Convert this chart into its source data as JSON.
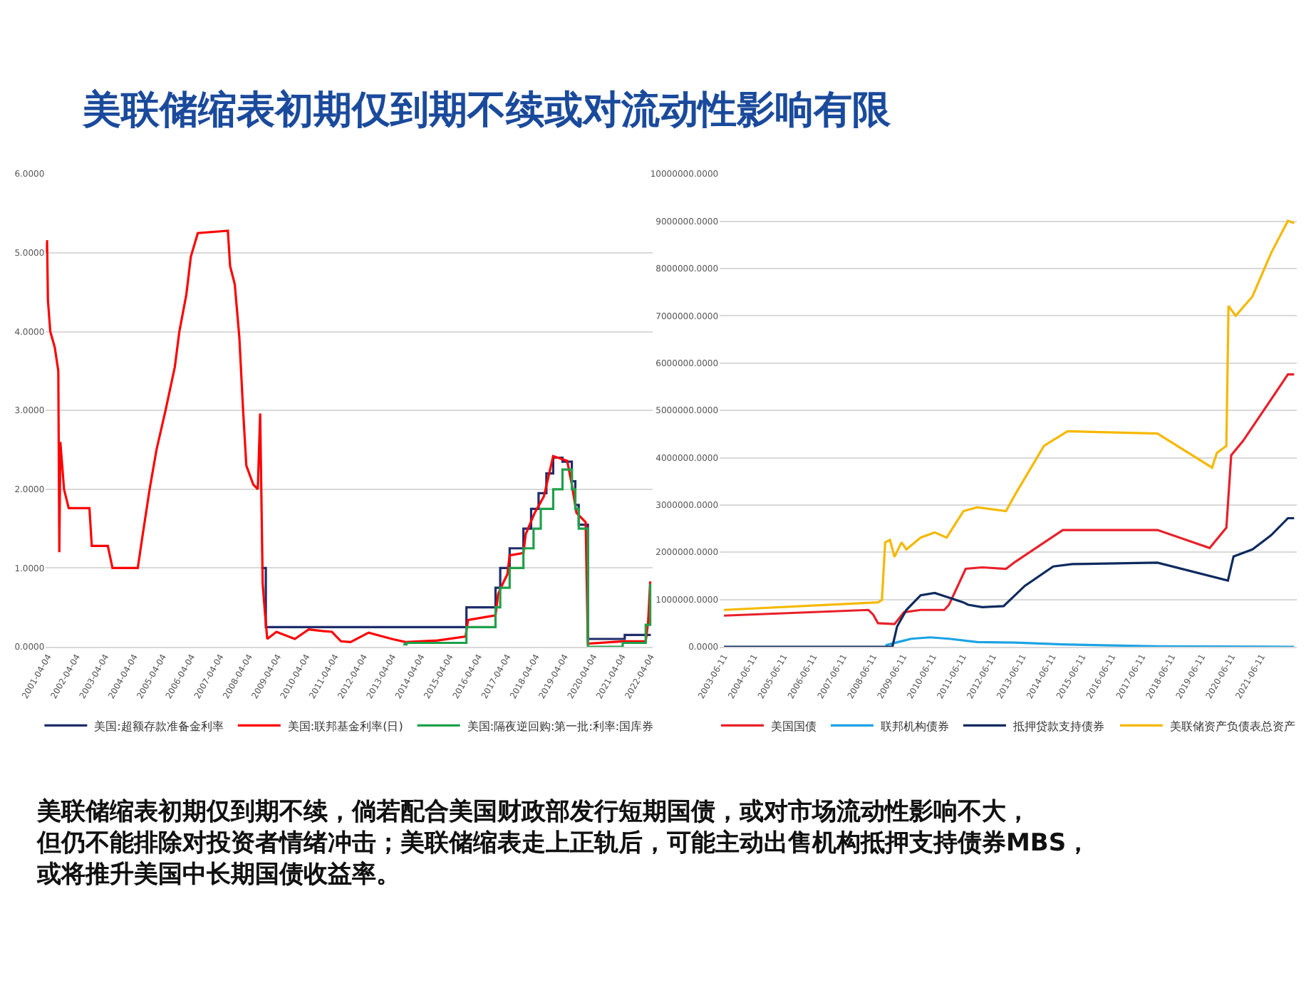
{
  "chart_data": [
    {
      "type": "line",
      "title": "美联储缩表初期仅到期不续或对流动性影响有限",
      "annotations": [
        "美联储缩表初期仅到期不续，倘若配合美国财政部发行短期国债，或对市场流动性影响不大，但仍不能排除对投资者情绪冲击；美联储缩表走上正轨后，可能主动出售机构抵押支持债券MBS，或将推升美国中长期国债收益率。"
      ],
      "xlim": [
        "2001-03-10",
        "2022-05-01"
      ],
      "xticks": [
        "2001-04-04",
        "2002-04-04",
        "2003-04-04",
        "2004-04-04",
        "2005-04-04",
        "2006-04-04",
        "2007-04-04",
        "2008-04-04",
        "2009-04-04",
        "2010-04-04",
        "2011-04-04",
        "2012-04-04",
        "2013-04-04",
        "2014-04-04",
        "2015-04-04",
        "2016-04-04",
        "2017-04-04",
        "2018-04-04",
        "2019-04-04",
        "2020-04-04",
        "2021-04-04",
        "2022-04-04"
      ],
      "ylim": [
        0,
        6
      ],
      "yticks": [
        {
          "value": 0,
          "label": "0.0000"
        },
        {
          "value": 1,
          "label": "1.0000"
        },
        {
          "value": 2,
          "label": "2.0000"
        },
        {
          "value": 3,
          "label": "3.0000"
        },
        {
          "value": 4,
          "label": "4.0000"
        },
        {
          "value": 5,
          "label": "5.0000"
        },
        {
          "value": 6,
          "label": "6.0000"
        }
      ],
      "grid": "y",
      "legend": "bottom",
      "series": [
        {
          "name": "美国:超额存款准备金利率",
          "type": "step",
          "color": "#1f2d6b",
          "x": [
            "2008-09-10",
            "2008-11-06",
            "2015-11-02",
            "2016-11-06",
            "2017-01-05",
            "2017-05-05",
            "2017-10-27",
            "2018-02-02",
            "2018-05-08",
            "2018-08-15",
            "2018-11-10",
            "2019-03-08",
            "2019-07-05",
            "2019-08-18",
            "2019-10-01",
            "2020-01-25",
            "2021-05-08",
            "2022-04-05"
          ],
          "values": [
            1.0,
            0.25,
            0.5,
            0.75,
            1.0,
            1.25,
            1.5,
            1.75,
            1.95,
            2.2,
            2.4,
            2.35,
            2.1,
            1.8,
            1.55,
            0.1,
            0.15,
            0.15
          ]
        },
        {
          "name": "美国:联邦基金利率(日)",
          "type": "line",
          "color": "#ff0000",
          "x": [
            "2001-03-15",
            "2001-03-25",
            "2001-04-05",
            "2001-05-05",
            "2001-07-01",
            "2001-08-15",
            "2001-08-28",
            "2001-09-10",
            "2001-10-27",
            "2001-12-25",
            "2002-09-15",
            "2002-10-15",
            "2003-05-07",
            "2003-07-05",
            "2004-05-22",
            "2004-07-20",
            "2004-10-20",
            "2005-01-15",
            "2005-05-10",
            "2005-09-05",
            "2005-11-02",
            "2006-01-30",
            "2006-03-28",
            "2006-06-25",
            "2007-07-12",
            "2007-08-10",
            "2007-10-08",
            "2007-12-05",
            "2008-01-22",
            "2008-03-03",
            "2008-05-30",
            "2008-07-27",
            "2008-08-26",
            "2008-09-27",
            "2008-10-26",
            "2008-11-24",
            "2009-03-21",
            "2009-11-10",
            "2010-05-05",
            "2010-11-01",
            "2011-02-25",
            "2011-06-20",
            "2011-10-20",
            "2012-06-06",
            "2013-03-28",
            "2013-09-20",
            "2014-11-01",
            "2015-10-22",
            "2015-11-22",
            "2016-11-06",
            "2016-12-10",
            "2017-02-06",
            "2017-04-06",
            "2017-05-05",
            "2017-10-27",
            "2017-11-25",
            "2018-03-20",
            "2018-07-15",
            "2018-11-10",
            "2019-05-07",
            "2019-07-05",
            "2019-09-02",
            "2019-12-28",
            "2020-01-25",
            "2021-04-12",
            "2022-01-30",
            "2022-03-01",
            "2022-03-28"
          ],
          "values": [
            5.0,
            5.16,
            4.4,
            4.0,
            3.8,
            3.5,
            1.2,
            2.6,
            2.0,
            1.76,
            1.76,
            1.28,
            1.28,
            1.0,
            1.0,
            1.4,
            2.0,
            2.5,
            3.0,
            3.55,
            4.0,
            4.47,
            4.95,
            5.25,
            5.28,
            4.83,
            4.6,
            3.93,
            3.0,
            2.3,
            2.06,
            2.0,
            2.96,
            0.8,
            0.43,
            0.1,
            0.19,
            0.1,
            0.22,
            0.2,
            0.19,
            0.07,
            0.06,
            0.18,
            0.1,
            0.06,
            0.08,
            0.13,
            0.34,
            0.4,
            0.67,
            0.8,
            0.92,
            1.16,
            1.19,
            1.43,
            1.7,
            1.91,
            2.42,
            2.36,
            2.06,
            1.7,
            1.58,
            0.04,
            0.07,
            0.07,
            0.31,
            0.83
          ]
        },
        {
          "name": "美国:隔夜逆回购:第一批:利率:国库券",
          "type": "step",
          "color": "#1fa04a",
          "x": [
            "2013-08-22",
            "2013-10-01",
            "2015-11-02",
            "2016-11-06",
            "2017-01-05",
            "2017-05-05",
            "2017-10-27",
            "2018-03-05",
            "2018-06-05",
            "2018-11-10",
            "2019-03-08",
            "2019-07-05",
            "2019-08-18",
            "2019-10-01",
            "2020-01-25",
            "2021-04-12",
            "2022-01-30",
            "2022-03-28"
          ],
          "values": [
            0.03,
            0.05,
            0.25,
            0.5,
            0.75,
            1.0,
            1.25,
            1.5,
            1.75,
            2.0,
            2.25,
            2.0,
            1.75,
            1.5,
            0.0,
            0.05,
            0.28,
            0.8
          ]
        }
      ]
    },
    {
      "type": "line",
      "xlim": [
        "2003-04-20",
        "2022-08-15"
      ],
      "xticks": [
        "2003-06-11",
        "2004-06-11",
        "2005-06-11",
        "2006-06-11",
        "2007-06-11",
        "2008-06-11",
        "2009-06-11",
        "2010-06-11",
        "2011-06-11",
        "2012-06-11",
        "2013-06-11",
        "2014-06-11",
        "2015-06-11",
        "2016-06-11",
        "2017-06-11",
        "2018-06-11",
        "2019-06-11",
        "2020-06-11",
        "2021-06-11"
      ],
      "ylim": [
        0,
        10000000
      ],
      "yticks": [
        {
          "value": 0,
          "label": "0.0000"
        },
        {
          "value": 1000000,
          "label": "1000000.0000"
        },
        {
          "value": 2000000,
          "label": "2000000.0000"
        },
        {
          "value": 3000000,
          "label": "3000000.0000"
        },
        {
          "value": 4000000,
          "label": "4000000.0000"
        },
        {
          "value": 5000000,
          "label": "5000000.0000"
        },
        {
          "value": 6000000,
          "label": "6000000.0000"
        },
        {
          "value": 7000000,
          "label": "7000000.0000"
        },
        {
          "value": 8000000,
          "label": "8000000.0000"
        },
        {
          "value": 9000000,
          "label": "9000000.0000"
        },
        {
          "value": 10000000,
          "label": "10000000.0000"
        }
      ],
      "grid": "y",
      "legend": "bottom",
      "series": [
        {
          "name": "美国国债",
          "color": "#e8202a",
          "x": [
            "2003-06-11",
            "2008-04-12",
            "2008-06-10",
            "2008-08-07",
            "2009-02-25",
            "2009-06-21",
            "2010-01-11",
            "2010-10-27",
            "2010-12-24",
            "2011-07-16",
            "2012-02-03",
            "2012-11-20",
            "2013-03-15",
            "2014-10-16",
            "2017-12-17",
            "2019-09-17",
            "2020-04-08",
            "2020-06-06",
            "2020-10-27",
            "2022-05-01",
            "2022-07-16"
          ],
          "values": [
            660000,
            780000,
            680000,
            500000,
            480000,
            730000,
            780000,
            780000,
            890000,
            1650000,
            1680000,
            1650000,
            1800000,
            2470000,
            2470000,
            2090000,
            2520000,
            4050000,
            4350000,
            5760000,
            5760000
          ]
        },
        {
          "name": "联邦机构债券",
          "color": "#1ca3e3",
          "x": [
            "2008-11-06",
            "2009-01-30",
            "2009-09-17",
            "2010-05-05",
            "2010-12-24",
            "2011-12-05",
            "2013-03-15",
            "2014-10-16",
            "2017-12-17",
            "2022-07-16"
          ],
          "values": [
            30000,
            70000,
            170000,
            200000,
            170000,
            100000,
            90000,
            50000,
            10000,
            0
          ]
        },
        {
          "name": "抵押贷款支持债券",
          "color": "#0d2a5e",
          "x": [
            "2003-06-11",
            "2009-01-30",
            "2009-03-29",
            "2009-07-20",
            "2010-01-11",
            "2010-07-02",
            "2010-12-24",
            "2011-06-18",
            "2011-08-15",
            "2012-02-03",
            "2012-10-22",
            "2013-07-09",
            "2014-06-21",
            "2015-02-10",
            "2017-12-17",
            "2020-04-27",
            "2020-07-05",
            "2021-02-21",
            "2021-10-08",
            "2022-05-01",
            "2022-07-16"
          ],
          "values": [
            0,
            0,
            430000,
            780000,
            1090000,
            1140000,
            1040000,
            940000,
            890000,
            840000,
            860000,
            1290000,
            1700000,
            1750000,
            1780000,
            1400000,
            1910000,
            2060000,
            2360000,
            2720000,
            2720000
          ]
        },
        {
          "name": "美联储资产负债表总资产",
          "color": "#f5b800",
          "x": [
            "2003-06-11",
            "2008-08-07",
            "2008-09-24",
            "2008-11-03",
            "2009-01-01",
            "2009-02-25",
            "2009-05-22",
            "2009-07-20",
            "2010-01-11",
            "2010-07-02",
            "2010-11-25",
            "2011-06-18",
            "2011-12-05",
            "2012-11-20",
            "2013-03-15",
            "2014-02-28",
            "2014-12-13",
            "2017-12-17",
            "2019-10-16",
            "2019-12-13",
            "2020-04-08",
            "2020-05-04",
            "2020-07-31",
            "2021-02-21",
            "2021-10-08",
            "2022-05-01",
            "2022-07-16"
          ],
          "values": [
            780000,
            940000,
            990000,
            2210000,
            2260000,
            1900000,
            2210000,
            2060000,
            2310000,
            2420000,
            2310000,
            2870000,
            2950000,
            2870000,
            3230000,
            4250000,
            4560000,
            4510000,
            3790000,
            4100000,
            4250000,
            7210000,
            7000000,
            7410000,
            8330000,
            9010000,
            8960000
          ]
        }
      ]
    }
  ]
}
